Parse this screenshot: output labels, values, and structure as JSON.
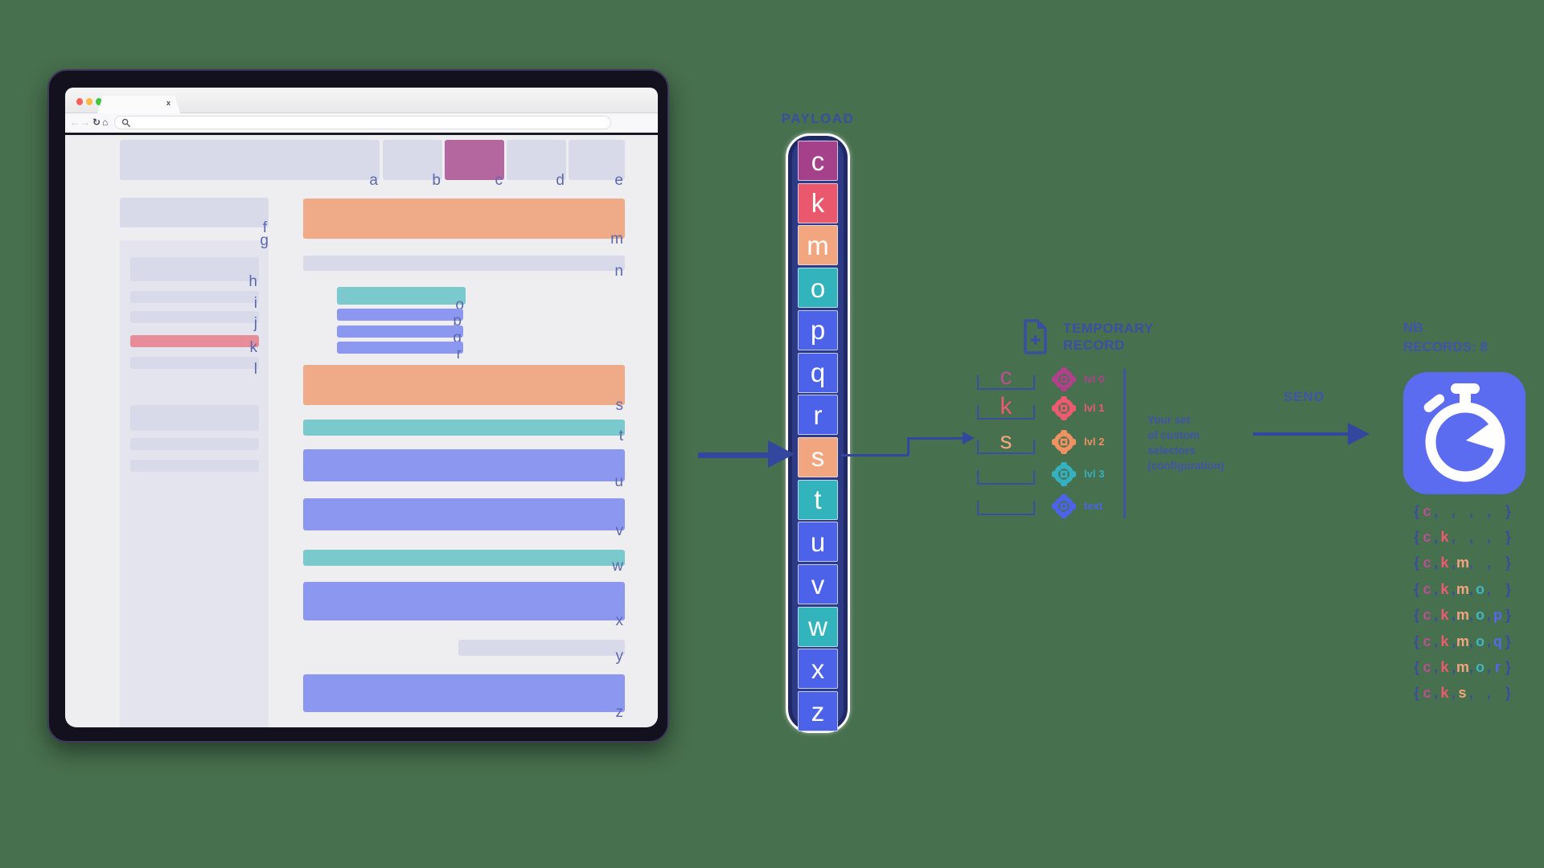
{
  "canvas": {
    "background": "#47704e"
  },
  "colors": {
    "ink": "#3b4f9e",
    "label": "#5c69ae",
    "lavender": "#d8d9e9",
    "panel": "#e4e4ee",
    "orange": "#efab87",
    "teal": "#79c9cd",
    "blue": "#8c97ef",
    "red": "#e78d99",
    "purple": "#b4679e"
  },
  "browser": {
    "tab_close_glyph": "x",
    "traffic_lights": [
      "#f8605a",
      "#fcbb40",
      "#3ec544"
    ],
    "nav": {
      "back_glyph": "←",
      "forward_glyph": "→",
      "reload_glyph": "↻",
      "home_glyph": "⌂"
    },
    "header_boxes": [
      {
        "label": "a",
        "variant": "lavender"
      },
      {
        "label": "b",
        "variant": "lavender"
      },
      {
        "label": "c",
        "variant": "purple"
      },
      {
        "label": "d",
        "variant": "lavender"
      },
      {
        "label": "e",
        "variant": "lavender"
      }
    ],
    "sidebar": {
      "f_label": "f",
      "g_label": "g",
      "rows": [
        {
          "label": "h",
          "variant": "lavender"
        },
        {
          "label": "i",
          "variant": "lavender"
        },
        {
          "label": "j",
          "variant": "lavender"
        },
        {
          "label": "k",
          "variant": "red"
        },
        {
          "label": "l",
          "variant": "lavender"
        },
        {
          "label": "",
          "variant": "lavender"
        },
        {
          "label": "",
          "variant": "lavender"
        },
        {
          "label": "",
          "variant": "lavender"
        }
      ]
    },
    "main_blocks": [
      {
        "label": "m",
        "variant": "orange"
      },
      {
        "label": "n",
        "variant": "lavender"
      },
      {
        "label": "o",
        "variant": "teal"
      },
      {
        "label": "p",
        "variant": "blue"
      },
      {
        "label": "q",
        "variant": "blue"
      },
      {
        "label": "r",
        "variant": "blue"
      },
      {
        "label": "s",
        "variant": "orange"
      },
      {
        "label": "t",
        "variant": "teal"
      },
      {
        "label": "u",
        "variant": "blue"
      },
      {
        "label": "v",
        "variant": "blue"
      },
      {
        "label": "w",
        "variant": "teal"
      },
      {
        "label": "x",
        "variant": "blue"
      },
      {
        "label": "y",
        "variant": "lavender"
      },
      {
        "label": "z",
        "variant": "blue"
      }
    ]
  },
  "payload": {
    "title": "PAYLOAD",
    "cells": [
      {
        "letter": "c",
        "color": "#a5408a"
      },
      {
        "letter": "k",
        "color": "#e9586d"
      },
      {
        "letter": "m",
        "color": "#f1a67f"
      },
      {
        "letter": "o",
        "color": "#33b3bb"
      },
      {
        "letter": "p",
        "color": "#4c63e9"
      },
      {
        "letter": "q",
        "color": "#4c63e9"
      },
      {
        "letter": "r",
        "color": "#4c63e9"
      },
      {
        "letter": "s",
        "color": "#f1a67f"
      },
      {
        "letter": "t",
        "color": "#33b3bb"
      },
      {
        "letter": "u",
        "color": "#4c63e9"
      },
      {
        "letter": "v",
        "color": "#4c63e9"
      },
      {
        "letter": "w",
        "color": "#33b3bb"
      },
      {
        "letter": "x",
        "color": "#4c63e9"
      },
      {
        "letter": "z",
        "color": "#4c63e9"
      }
    ]
  },
  "temp_record": {
    "title_line1": "TEMPORARY",
    "title_line2": "RECORD",
    "rows": [
      {
        "letter": "c",
        "letter_color": "#bb4f92",
        "accent": "#b0418a",
        "label": "lvl 0"
      },
      {
        "letter": "k",
        "letter_color": "#ee5a70",
        "accent": "#ee5a70",
        "label": "lvl 1"
      },
      {
        "letter": "s",
        "letter_color": "#f2a87f",
        "accent": "#ef9160",
        "label": "lvl 2"
      },
      {
        "letter": "",
        "letter_color": "#35b0c0",
        "accent": "#35b0c0",
        "label": "lvl 3"
      },
      {
        "letter": "",
        "letter_color": "#4c63e9",
        "accent": "#4c63e9",
        "label": "text"
      }
    ],
    "note_lines": [
      "Your set",
      "of custom",
      "selectors",
      "(configuration)"
    ]
  },
  "send": {
    "label": "SEND"
  },
  "nb": {
    "title_line1": "NB",
    "title_line2": "RECORDS: 8",
    "punct_color": "#3c4d9d",
    "letter_colors": {
      "c": "#bb4f92",
      "k": "#ee5a70",
      "m": "#f0a57f",
      "o": "#3fb6c2",
      "p": "#5568ee",
      "q": "#5568ee",
      "r": "#5568ee",
      "s": "#f0a57f"
    },
    "records": [
      [
        "c",
        "",
        "",
        "",
        ""
      ],
      [
        "c",
        "k",
        "",
        "",
        ""
      ],
      [
        "c",
        "k",
        "m",
        "",
        ""
      ],
      [
        "c",
        "k",
        "m",
        "o",
        ""
      ],
      [
        "c",
        "k",
        "m",
        "o",
        "p"
      ],
      [
        "c",
        "k",
        "m",
        "o",
        "q"
      ],
      [
        "c",
        "k",
        "m",
        "o",
        "r"
      ],
      [
        "c",
        "k",
        "s",
        "",
        ""
      ]
    ]
  }
}
